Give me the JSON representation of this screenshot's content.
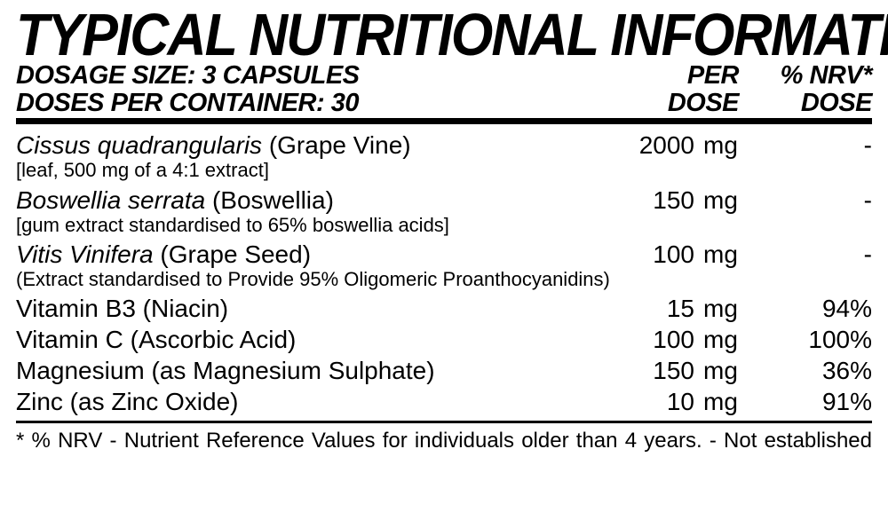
{
  "title": "TYPICAL NUTRITIONAL INFORMATION",
  "dosage_size_label": "DOSAGE SIZE: 3 CAPSULES",
  "doses_per_container_label": "DOSES PER CONTAINER: 30",
  "col_per_line1": "PER",
  "col_per_line2": "DOSE",
  "col_nrv_line1": "% NRV*",
  "col_nrv_line2": "DOSE",
  "rows": [
    {
      "name_sci": "Cissus quadrangularis",
      "name_plain": " (Grape Vine)",
      "amount": "2000",
      "unit": "mg",
      "nrv": "-",
      "detail": "[leaf, 500 mg of a 4:1 extract]"
    },
    {
      "name_sci": "Boswellia serrata",
      "name_plain": " (Boswellia)",
      "amount": "150",
      "unit": "mg",
      "nrv": "-",
      "detail": "[gum extract standardised to 65% boswellia acids]"
    },
    {
      "name_sci": "Vitis Vinifera",
      "name_plain": " (Grape Seed)",
      "amount": "100",
      "unit": "mg",
      "nrv": "-",
      "detail": "(Extract standardised to Provide 95% Oligomeric Proanthocyanidins)"
    },
    {
      "name_sci": "",
      "name_plain": "Vitamin B3 (Niacin)",
      "amount": "15",
      "unit": "mg",
      "nrv": "94%",
      "detail": ""
    },
    {
      "name_sci": "",
      "name_plain": "Vitamin C (Ascorbic Acid)",
      "amount": "100",
      "unit": "mg",
      "nrv": "100%",
      "detail": ""
    },
    {
      "name_sci": "",
      "name_plain": "Magnesium (as Magnesium Sulphate)",
      "amount": "150",
      "unit": "mg",
      "nrv": "36%",
      "detail": ""
    },
    {
      "name_sci": "",
      "name_plain": "Zinc (as Zinc Oxide)",
      "amount": "10",
      "unit": "mg",
      "nrv": "91%",
      "detail": ""
    }
  ],
  "footnote": "* % NRV - Nutrient Reference Values for individuals older than 4 years. - Not established"
}
